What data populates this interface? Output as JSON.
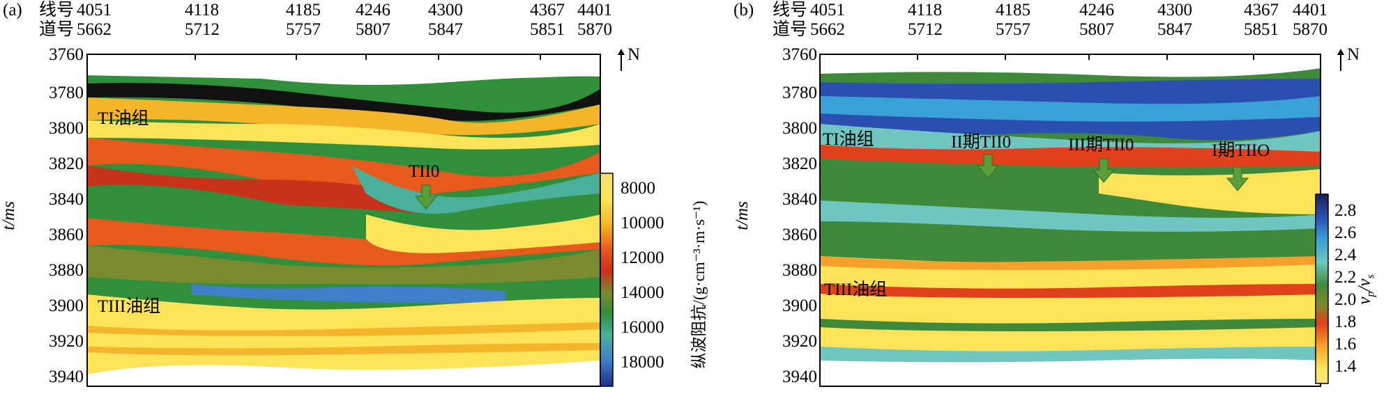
{
  "figure": {
    "panel_a": {
      "label": "(a)",
      "line_header": "线号",
      "trace_header": "道号",
      "line_numbers": [
        "4051",
        "4118",
        "4185",
        "4246",
        "4300",
        "4367",
        "4401"
      ],
      "trace_numbers": [
        "5662",
        "5712",
        "5757",
        "5807",
        "5847",
        "5851",
        "5870"
      ],
      "north_label": "N",
      "y_axis_label": "t/ms",
      "y_ticks": [
        "3760",
        "3780",
        "3800",
        "3820",
        "3840",
        "3860",
        "3880",
        "3900",
        "3920",
        "3940"
      ],
      "annotations": {
        "upper_group": "TI油组",
        "lower_group": "TIII油组",
        "marker": "TII0"
      },
      "colorbar": {
        "title": "纵波阻抗/(g·cm⁻³·m·s⁻¹)",
        "ticks": [
          "8000",
          "10000",
          "12000",
          "14000",
          "16000",
          "18000"
        ],
        "colors": [
          "#f4e07a",
          "#fde35a",
          "#f5b52a",
          "#e65a1e",
          "#c8321a",
          "#7a8a2e",
          "#2f8f3a",
          "#4bb09a",
          "#3f7fc8",
          "#1e2f8a"
        ]
      }
    },
    "panel_b": {
      "label": "(b)",
      "line_header": "线号",
      "trace_header": "道号",
      "line_numbers": [
        "4051",
        "4118",
        "4185",
        "4246",
        "4300",
        "4367",
        "4401"
      ],
      "trace_numbers": [
        "5662",
        "5712",
        "5757",
        "5807",
        "5847",
        "5851",
        "5870"
      ],
      "north_label": "N",
      "y_axis_label": "t/ms",
      "y_ticks": [
        "3760",
        "3780",
        "3800",
        "3820",
        "3840",
        "3860",
        "3880",
        "3900",
        "3920",
        "3940"
      ],
      "annotations": {
        "upper_group": "TI油组",
        "lower_group": "TIII油组",
        "marker1": "II期TII0",
        "marker2": "III期TII0",
        "marker3": "I期TIIO"
      },
      "colorbar": {
        "title_main": "v",
        "title_sub1": "p",
        "title_sep": "/v",
        "title_sub2": "s",
        "ticks": [
          "2.8",
          "2.6",
          "2.4",
          "2.2",
          "2.0",
          "1.8",
          "1.6",
          "1.4"
        ],
        "colors": [
          "#1c1f5a",
          "#2a4fb0",
          "#3aa0d8",
          "#6fc6c0",
          "#3e8a3a",
          "#7a8a2e",
          "#e0401a",
          "#f5a02a",
          "#fde35a",
          "#f8e48a"
        ]
      }
    }
  }
}
